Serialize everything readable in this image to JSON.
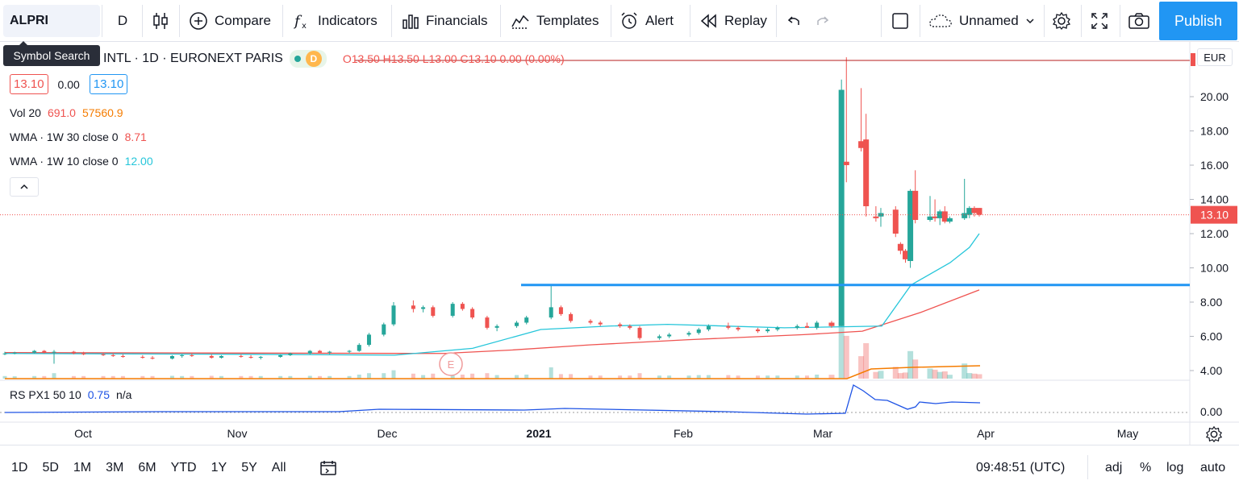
{
  "toolbar": {
    "symbol": "ALPRI",
    "interval": "D",
    "compare": "Compare",
    "indicators": "Indicators",
    "financials": "Financials",
    "templates": "Templates",
    "alert": "Alert",
    "replay": "Replay",
    "layout_name": "Unnamed",
    "publish": "Publish"
  },
  "tooltip": "Symbol Search",
  "legend": {
    "title": "INTL · 1D · EURONEXT PARIS",
    "badge": "D",
    "ohlc": "O13.50 H13.50 L13.00 C13.10 0.00 (0.00%)",
    "bid": "13.10",
    "spread": "0.00",
    "ask": "13.10",
    "vol_label": "Vol 20",
    "vol_v1": "691.0",
    "vol_v2": "57560.9",
    "wma30_label": "WMA · 1W 30 close 0",
    "wma30_value": "8.71",
    "wma10_label": "WMA · 1W 10 close 0",
    "wma10_value": "12.00",
    "rsp_label": "RS PX1 50 10",
    "rsp_value": "0.75",
    "rsp_na": "n/a"
  },
  "price_axis": {
    "currency": "EUR",
    "ticks": [
      "20.00",
      "18.00",
      "16.00",
      "14.00",
      "12.00",
      "10.00",
      "8.00",
      "6.00",
      "4.00"
    ],
    "last_price": "13.10",
    "rsp_tick": "0.00"
  },
  "time_axis": {
    "ticks": [
      "Oct",
      "Nov",
      "Dec",
      "2021",
      "Feb",
      "Mar",
      "Apr",
      "May"
    ]
  },
  "earnings_marker": "E",
  "colors": {
    "up": "#26a69a",
    "down": "#ef5350",
    "wma30": "#ef5350",
    "wma10": "#26c6da",
    "hline": "#2196f3",
    "volume_ma": "#f57c00",
    "rsp": "#1e53e5",
    "accent": "#2196f3"
  },
  "bottombar": {
    "ranges": [
      "1D",
      "5D",
      "1M",
      "3M",
      "6M",
      "YTD",
      "1Y",
      "5Y",
      "All"
    ],
    "clock": "09:48:51 (UTC)",
    "adj": "adj",
    "percent": "%",
    "log": "log",
    "auto": "auto"
  },
  "chart_data": {
    "type": "candlestick",
    "xlabel": "",
    "ylabel": "",
    "ylim": [
      3.4,
      22.5
    ],
    "grid": false,
    "horizontal_line": 9.0,
    "candles": [
      {
        "date": "2020-09-15",
        "o": 5.0,
        "h": 5.1,
        "l": 4.9,
        "c": 5.0
      },
      {
        "date": "2020-09-17",
        "o": 5.0,
        "h": 5.1,
        "l": 4.95,
        "c": 5.05
      },
      {
        "date": "2020-09-21",
        "o": 5.05,
        "h": 5.2,
        "l": 5.0,
        "c": 5.15
      },
      {
        "date": "2020-09-23",
        "o": 5.15,
        "h": 5.2,
        "l": 5.0,
        "c": 5.05
      },
      {
        "date": "2020-09-25",
        "o": 5.05,
        "h": 5.2,
        "l": 4.4,
        "c": 5.1
      },
      {
        "date": "2020-09-29",
        "o": 5.1,
        "h": 5.15,
        "l": 4.95,
        "c": 5.0
      },
      {
        "date": "2020-10-01",
        "o": 5.0,
        "h": 5.1,
        "l": 4.9,
        "c": 4.95
      },
      {
        "date": "2020-10-05",
        "o": 4.95,
        "h": 5.05,
        "l": 4.85,
        "c": 4.9
      },
      {
        "date": "2020-10-07",
        "o": 4.9,
        "h": 5.0,
        "l": 4.8,
        "c": 4.85
      },
      {
        "date": "2020-10-09",
        "o": 4.85,
        "h": 4.95,
        "l": 4.75,
        "c": 4.8
      },
      {
        "date": "2020-10-13",
        "o": 4.8,
        "h": 4.9,
        "l": 4.7,
        "c": 4.75
      },
      {
        "date": "2020-10-15",
        "o": 4.75,
        "h": 4.85,
        "l": 4.65,
        "c": 4.7
      },
      {
        "date": "2020-10-19",
        "o": 4.7,
        "h": 4.9,
        "l": 4.65,
        "c": 4.85
      },
      {
        "date": "2020-10-21",
        "o": 4.85,
        "h": 4.95,
        "l": 4.75,
        "c": 4.9
      },
      {
        "date": "2020-10-23",
        "o": 4.9,
        "h": 5.0,
        "l": 4.8,
        "c": 4.85
      },
      {
        "date": "2020-10-27",
        "o": 4.85,
        "h": 4.95,
        "l": 4.7,
        "c": 4.75
      },
      {
        "date": "2020-10-29",
        "o": 4.75,
        "h": 4.9,
        "l": 4.7,
        "c": 4.85
      },
      {
        "date": "2020-11-02",
        "o": 4.85,
        "h": 4.95,
        "l": 4.75,
        "c": 4.8
      },
      {
        "date": "2020-11-04",
        "o": 4.8,
        "h": 4.9,
        "l": 4.7,
        "c": 4.75
      },
      {
        "date": "2020-11-06",
        "o": 4.75,
        "h": 4.85,
        "l": 4.65,
        "c": 4.8
      },
      {
        "date": "2020-11-10",
        "o": 4.8,
        "h": 4.95,
        "l": 4.75,
        "c": 4.9
      },
      {
        "date": "2020-11-12",
        "o": 4.9,
        "h": 5.05,
        "l": 4.85,
        "c": 5.0
      },
      {
        "date": "2020-11-16",
        "o": 5.0,
        "h": 5.2,
        "l": 4.95,
        "c": 5.15
      },
      {
        "date": "2020-11-18",
        "o": 5.15,
        "h": 5.2,
        "l": 5.0,
        "c": 5.05
      },
      {
        "date": "2020-11-20",
        "o": 5.05,
        "h": 5.15,
        "l": 4.95,
        "c": 5.1
      },
      {
        "date": "2020-11-24",
        "o": 5.1,
        "h": 5.2,
        "l": 5.0,
        "c": 5.15
      },
      {
        "date": "2020-11-26",
        "o": 5.15,
        "h": 5.6,
        "l": 5.1,
        "c": 5.5
      },
      {
        "date": "2020-11-28",
        "o": 5.5,
        "h": 6.2,
        "l": 5.4,
        "c": 6.1
      },
      {
        "date": "2020-12-01",
        "o": 6.1,
        "h": 6.8,
        "l": 6.0,
        "c": 6.7
      },
      {
        "date": "2020-12-03",
        "o": 6.7,
        "h": 8.0,
        "l": 6.6,
        "c": 7.8
      },
      {
        "date": "2020-12-07",
        "o": 7.8,
        "h": 8.1,
        "l": 7.4,
        "c": 7.6
      },
      {
        "date": "2020-12-09",
        "o": 7.6,
        "h": 7.8,
        "l": 7.4,
        "c": 7.7
      },
      {
        "date": "2020-12-11",
        "o": 7.7,
        "h": 7.8,
        "l": 7.1,
        "c": 7.2
      },
      {
        "date": "2020-12-15",
        "o": 7.2,
        "h": 8.0,
        "l": 7.1,
        "c": 7.9
      },
      {
        "date": "2020-12-17",
        "o": 7.9,
        "h": 8.0,
        "l": 7.5,
        "c": 7.6
      },
      {
        "date": "2020-12-19",
        "o": 7.6,
        "h": 7.7,
        "l": 7.0,
        "c": 7.1
      },
      {
        "date": "2020-12-22",
        "o": 7.1,
        "h": 7.2,
        "l": 6.4,
        "c": 6.5
      },
      {
        "date": "2020-12-24",
        "o": 6.5,
        "h": 6.7,
        "l": 6.3,
        "c": 6.6
      },
      {
        "date": "2020-12-28",
        "o": 6.6,
        "h": 6.9,
        "l": 6.5,
        "c": 6.8
      },
      {
        "date": "2020-12-30",
        "o": 6.8,
        "h": 7.2,
        "l": 6.7,
        "c": 7.1
      },
      {
        "date": "2021-01-04",
        "o": 7.1,
        "h": 9.0,
        "l": 7.0,
        "c": 7.7
      },
      {
        "date": "2021-01-06",
        "o": 7.7,
        "h": 7.8,
        "l": 7.2,
        "c": 7.3
      },
      {
        "date": "2021-01-08",
        "o": 7.3,
        "h": 7.4,
        "l": 6.8,
        "c": 6.9
      },
      {
        "date": "2021-01-12",
        "o": 6.9,
        "h": 7.0,
        "l": 6.7,
        "c": 6.8
      },
      {
        "date": "2021-01-14",
        "o": 6.8,
        "h": 6.9,
        "l": 6.6,
        "c": 6.7
      },
      {
        "date": "2021-01-18",
        "o": 6.7,
        "h": 6.8,
        "l": 6.5,
        "c": 6.6
      },
      {
        "date": "2021-01-20",
        "o": 6.6,
        "h": 6.7,
        "l": 6.4,
        "c": 6.5
      },
      {
        "date": "2021-01-22",
        "o": 6.5,
        "h": 6.6,
        "l": 5.8,
        "c": 5.9
      },
      {
        "date": "2021-01-26",
        "o": 5.9,
        "h": 6.1,
        "l": 5.8,
        "c": 6.0
      },
      {
        "date": "2021-01-28",
        "o": 6.0,
        "h": 6.2,
        "l": 5.9,
        "c": 6.1
      },
      {
        "date": "2021-02-01",
        "o": 6.1,
        "h": 6.3,
        "l": 6.0,
        "c": 6.2
      },
      {
        "date": "2021-02-03",
        "o": 6.2,
        "h": 6.5,
        "l": 6.1,
        "c": 6.4
      },
      {
        "date": "2021-02-05",
        "o": 6.4,
        "h": 6.7,
        "l": 6.3,
        "c": 6.6
      },
      {
        "date": "2021-02-09",
        "o": 6.6,
        "h": 6.8,
        "l": 6.4,
        "c": 6.5
      },
      {
        "date": "2021-02-11",
        "o": 6.5,
        "h": 6.6,
        "l": 6.3,
        "c": 6.4
      },
      {
        "date": "2021-02-15",
        "o": 6.4,
        "h": 6.5,
        "l": 6.2,
        "c": 6.3
      },
      {
        "date": "2021-02-17",
        "o": 6.3,
        "h": 6.5,
        "l": 6.2,
        "c": 6.4
      },
      {
        "date": "2021-02-19",
        "o": 6.4,
        "h": 6.6,
        "l": 6.3,
        "c": 6.5
      },
      {
        "date": "2021-02-23",
        "o": 6.5,
        "h": 6.7,
        "l": 6.4,
        "c": 6.6
      },
      {
        "date": "2021-02-25",
        "o": 6.6,
        "h": 6.8,
        "l": 6.5,
        "c": 6.5
      },
      {
        "date": "2021-02-27",
        "o": 6.5,
        "h": 6.9,
        "l": 6.4,
        "c": 6.8
      },
      {
        "date": "2021-03-02",
        "o": 6.8,
        "h": 6.9,
        "l": 6.5,
        "c": 6.6
      },
      {
        "date": "2021-03-04",
        "o": 6.6,
        "h": 21.0,
        "l": 6.6,
        "c": 20.4
      },
      {
        "date": "2021-03-05",
        "o": 16.2,
        "h": 22.3,
        "l": 15.0,
        "c": 16.0
      },
      {
        "date": "2021-03-08",
        "o": 17.4,
        "h": 20.5,
        "l": 16.8,
        "c": 17.0
      },
      {
        "date": "2021-03-09",
        "o": 17.5,
        "h": 19.0,
        "l": 13.0,
        "c": 13.6
      },
      {
        "date": "2021-03-11",
        "o": 13.0,
        "h": 13.6,
        "l": 12.7,
        "c": 12.9
      },
      {
        "date": "2021-03-12",
        "o": 13.0,
        "h": 13.5,
        "l": 12.4,
        "c": 13.2
      },
      {
        "date": "2021-03-15",
        "o": 13.4,
        "h": 13.6,
        "l": 11.8,
        "c": 12.0
      },
      {
        "date": "2021-03-16",
        "o": 11.4,
        "h": 11.5,
        "l": 10.8,
        "c": 11.0
      },
      {
        "date": "2021-03-17",
        "o": 11.0,
        "h": 11.1,
        "l": 10.3,
        "c": 10.5
      },
      {
        "date": "2021-03-18",
        "o": 10.4,
        "h": 14.6,
        "l": 10.0,
        "c": 14.5
      },
      {
        "date": "2021-03-19",
        "o": 14.5,
        "h": 15.7,
        "l": 12.6,
        "c": 12.8
      },
      {
        "date": "2021-03-22",
        "o": 12.8,
        "h": 14.2,
        "l": 12.7,
        "c": 13.0
      },
      {
        "date": "2021-03-23",
        "o": 13.0,
        "h": 14.0,
        "l": 12.7,
        "c": 12.9
      },
      {
        "date": "2021-03-24",
        "o": 12.9,
        "h": 13.4,
        "l": 12.5,
        "c": 13.3
      },
      {
        "date": "2021-03-25",
        "o": 13.3,
        "h": 13.6,
        "l": 12.6,
        "c": 12.7
      },
      {
        "date": "2021-03-26",
        "o": 12.7,
        "h": 13.0,
        "l": 12.6,
        "c": 12.9
      },
      {
        "date": "2021-03-29",
        "o": 12.9,
        "h": 15.2,
        "l": 12.8,
        "c": 13.2
      },
      {
        "date": "2021-03-30",
        "o": 13.1,
        "h": 13.6,
        "l": 12.9,
        "c": 13.5
      },
      {
        "date": "2021-03-31",
        "o": 13.5,
        "h": 13.6,
        "l": 13.0,
        "c": 13.2
      },
      {
        "date": "2021-04-01",
        "o": 13.5,
        "h": 13.5,
        "l": 13.0,
        "c": 13.1
      }
    ],
    "wma30": [
      [
        0,
        5.05
      ],
      [
        0.45,
        5.0
      ],
      [
        0.52,
        5.2
      ],
      [
        0.6,
        5.5
      ],
      [
        0.7,
        5.8
      ],
      [
        0.82,
        6.1
      ],
      [
        0.88,
        6.3
      ],
      [
        0.94,
        7.4
      ],
      [
        1.0,
        8.71
      ]
    ],
    "wma10": [
      [
        0,
        5.0
      ],
      [
        0.25,
        4.95
      ],
      [
        0.4,
        4.9
      ],
      [
        0.48,
        5.3
      ],
      [
        0.55,
        6.4
      ],
      [
        0.62,
        6.6
      ],
      [
        0.68,
        6.7
      ],
      [
        0.8,
        6.5
      ],
      [
        0.9,
        6.6
      ],
      [
        0.93,
        9.0
      ],
      [
        0.97,
        10.3
      ],
      [
        0.99,
        11.2
      ],
      [
        1.0,
        12.0
      ]
    ]
  }
}
